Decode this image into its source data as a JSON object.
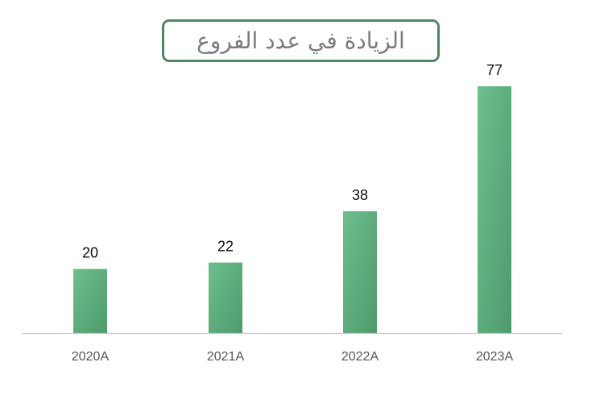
{
  "chart_data": {
    "type": "bar",
    "title": "الزيادة في عدد الفروع",
    "categories": [
      "2020A",
      "2021A",
      "2022A",
      "2023A"
    ],
    "values": [
      20,
      22,
      38,
      77
    ],
    "xlabel": "",
    "ylabel": "",
    "ylim": [
      0,
      77
    ],
    "grid": false,
    "legend": "none",
    "data_labels": true,
    "colors": {
      "bar_light": "#6dbf8d",
      "bar_dark": "#4f9a6c",
      "title_border": "#4f8763",
      "axis": "#c8c8c8"
    }
  }
}
